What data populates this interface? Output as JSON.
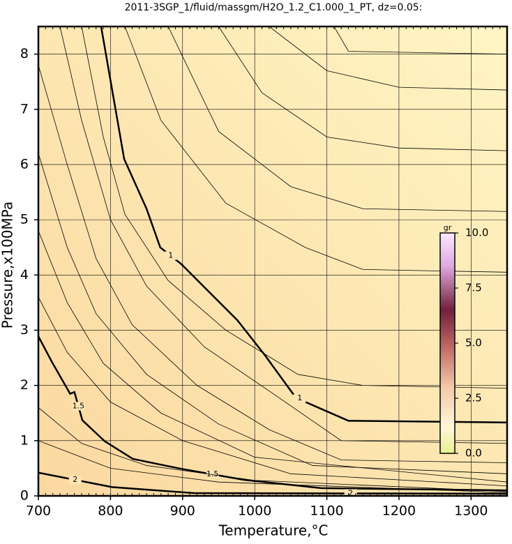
{
  "chart_data": {
    "type": "contour",
    "title": "2011-3SGP_1/fluid/massgm/H2O_1.2_C1.000_1_PT, dz=0.05:",
    "xlabel": "Temperature,°C",
    "ylabel": "Pressure,x100MPa",
    "xlim": [
      700,
      1350
    ],
    "ylim": [
      0,
      8.5
    ],
    "xticks": [
      700,
      800,
      900,
      1000,
      1100,
      1200,
      1300
    ],
    "yticks": [
      0,
      1,
      2,
      3,
      4,
      5,
      6,
      7,
      8
    ],
    "grid": true,
    "contours": [
      {
        "level": 1,
        "x": [
          787,
          819,
          850,
          869,
          898,
          937,
          976,
          1014,
          1053,
          1072,
          1130,
          1350
        ],
        "y": [
          8.5,
          6.1,
          5.2,
          4.5,
          4.2,
          3.69,
          3.18,
          2.55,
          1.85,
          1.69,
          1.36,
          1.33
        ]
      },
      {
        "level": 1.5,
        "x": [
          700,
          719,
          744,
          750,
          761,
          792,
          831,
          898,
          985,
          1092,
          1350
        ],
        "y": [
          2.89,
          2.42,
          1.85,
          1.88,
          1.37,
          0.99,
          0.67,
          0.49,
          0.29,
          0.14,
          0.1
        ]
      },
      {
        "level": 2,
        "x": [
          700,
          802,
          916,
          1350
        ],
        "y": [
          0.42,
          0.16,
          0.05,
          0.04
        ]
      },
      {
        "x": [
          880,
          950,
          1050,
          1150,
          1350
        ],
        "y": [
          8.5,
          6.6,
          5.6,
          5.2,
          5.15
        ]
      },
      {
        "x": [
          950,
          1010,
          1100,
          1200,
          1350
        ],
        "y": [
          8.5,
          7.3,
          6.5,
          6.3,
          6.25
        ]
      },
      {
        "x": [
          1020,
          1100,
          1200,
          1350
        ],
        "y": [
          8.5,
          7.7,
          7.4,
          7.35
        ]
      },
      {
        "x": [
          1110,
          1130,
          1350
        ],
        "y": [
          8.5,
          8.05,
          8.0
        ]
      },
      {
        "x": [
          820,
          870,
          960,
          1070,
          1150,
          1350
        ],
        "y": [
          8.5,
          6.8,
          5.3,
          4.5,
          4.1,
          4.05
        ]
      },
      {
        "x": [
          760,
          790,
          820,
          880,
          960,
          1060,
          1150,
          1350
        ],
        "y": [
          8.5,
          6.5,
          5.1,
          3.9,
          3.0,
          2.2,
          2.0,
          1.95
        ]
      },
      {
        "x": [
          730,
          760,
          800,
          850,
          930,
          1020,
          1120,
          1350
        ],
        "y": [
          8.5,
          6.8,
          5.0,
          3.8,
          2.7,
          1.9,
          1.0,
          0.95
        ]
      },
      {
        "x": [
          700,
          740,
          780,
          830,
          920,
          1020,
          1120,
          1350
        ],
        "y": [
          7.8,
          6.0,
          4.3,
          3.1,
          2.0,
          1.2,
          0.65,
          0.6
        ]
      },
      {
        "x": [
          700,
          740,
          780,
          850,
          950,
          1080,
          1350
        ],
        "y": [
          6.2,
          4.5,
          3.3,
          2.2,
          1.3,
          0.55,
          0.4
        ]
      },
      {
        "x": [
          700,
          740,
          790,
          870,
          1000,
          1350
        ],
        "y": [
          4.8,
          3.5,
          2.4,
          1.5,
          0.7,
          0.25
        ]
      },
      {
        "x": [
          700,
          740,
          800,
          900,
          1050,
          1350
        ],
        "y": [
          3.6,
          2.6,
          1.7,
          1.0,
          0.4,
          0.18
        ]
      },
      {
        "x": [
          700,
          760,
          850,
          1000,
          1350
        ],
        "y": [
          1.6,
          0.95,
          0.55,
          0.28,
          0.08
        ]
      },
      {
        "x": [
          700,
          800,
          950,
          1350
        ],
        "y": [
          1.0,
          0.5,
          0.25,
          0.06
        ]
      }
    ],
    "colorbar": {
      "label": "gr",
      "lim": [
        0,
        10
      ],
      "ticks": [
        {
          "value": 0,
          "label": "0.0"
        },
        {
          "value": 2.5,
          "label": "2.5"
        },
        {
          "value": 5,
          "label": "5.0"
        },
        {
          "value": 7.5,
          "label": "7.5"
        },
        {
          "value": 10,
          "label": "10.0"
        }
      ]
    }
  }
}
